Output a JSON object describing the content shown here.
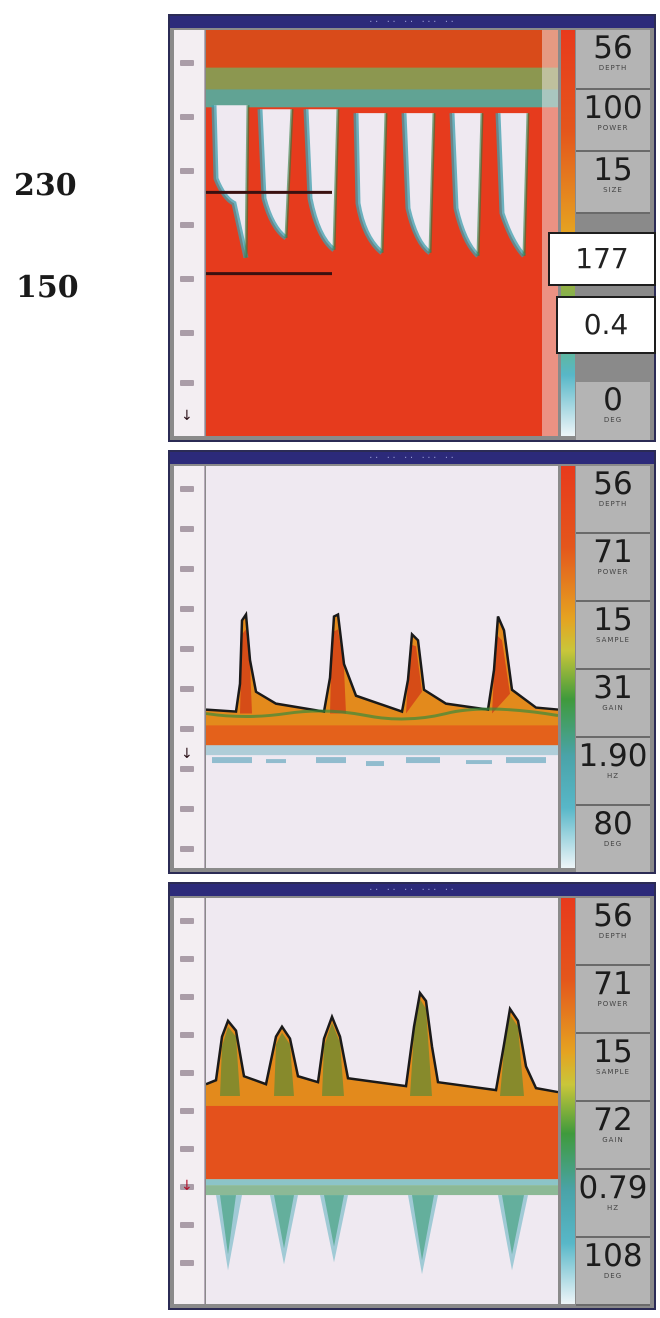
{
  "side_labels": {
    "upper": "230",
    "lower": "150"
  },
  "overlay_values": {
    "box_1": "177",
    "box_2": "0.4"
  },
  "panels": [
    {
      "readouts": [
        {
          "value": "56",
          "caption": "DEPTH"
        },
        {
          "value": "100",
          "caption": "POWER"
        },
        {
          "value": "15",
          "caption": "SIZE"
        },
        {
          "value": "0",
          "caption": "DEG"
        }
      ]
    },
    {
      "readouts": [
        {
          "value": "56",
          "caption": "DEPTH"
        },
        {
          "value": "71",
          "caption": "POWER"
        },
        {
          "value": "15",
          "caption": "SAMPLE"
        },
        {
          "value": "31",
          "caption": "GAIN"
        },
        {
          "value": "1.90",
          "caption": "HZ"
        },
        {
          "value": "80",
          "caption": "DEG"
        }
      ]
    },
    {
      "readouts": [
        {
          "value": "56",
          "caption": "DEPTH"
        },
        {
          "value": "71",
          "caption": "POWER"
        },
        {
          "value": "15",
          "caption": "SAMPLE"
        },
        {
          "value": "72",
          "caption": "GAIN"
        },
        {
          "value": "0.79",
          "caption": "HZ"
        },
        {
          "value": "108",
          "caption": "DEG"
        }
      ]
    }
  ],
  "colors": {
    "spectrum_red": "#e83a1c",
    "spectrum_orange": "#e38a1c",
    "spectrum_green": "#3f9a3c",
    "spectrum_cyan": "#58b7c8",
    "background_pale": "#efe9f1",
    "panel_bar": "#2c2a7a"
  }
}
